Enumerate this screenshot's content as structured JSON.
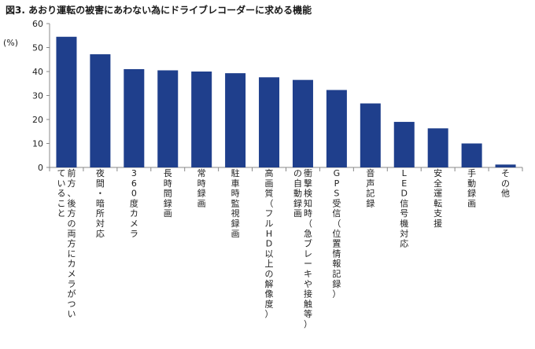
{
  "header": {
    "title": "図3. あおり運転の被害にあわない為にドライブレコーダーに求める機能"
  },
  "colors": {
    "bar": "#1f3f8c",
    "axis": "#888888"
  },
  "chart_data": {
    "type": "bar",
    "title": "図3. あおり運転の被害にあわない為にドライブレコーダーに求める機能",
    "ylabel": "(%)",
    "xlabel": "",
    "ylim": [
      0,
      60
    ],
    "yticks": [
      0,
      10,
      20,
      30,
      40,
      50,
      60
    ],
    "grid": false,
    "legend": "none",
    "categories": [
      [
        "前方、後方の両方にカメラがつい",
        "ていること"
      ],
      [
        "夜間・暗所対応"
      ],
      [
        "360度カメラ"
      ],
      [
        "長時間録画"
      ],
      [
        "常時録画"
      ],
      [
        "駐車時監視録画"
      ],
      [
        "高画質（フルHD以上の解像度）"
      ],
      [
        "衝撃検知時（急ブレーキや接触等）",
        "の自動録画"
      ],
      [
        "GPS受信（位置情報記録）"
      ],
      [
        "音声記録"
      ],
      [
        "LED信号機対応"
      ],
      [
        "安全運転支援"
      ],
      [
        "手動録画"
      ],
      [
        "その他"
      ]
    ],
    "values": [
      54.5,
      47.2,
      41.0,
      40.5,
      40.0,
      39.3,
      37.6,
      36.5,
      32.3,
      26.7,
      19.0,
      16.3,
      10.0,
      1.2
    ]
  }
}
